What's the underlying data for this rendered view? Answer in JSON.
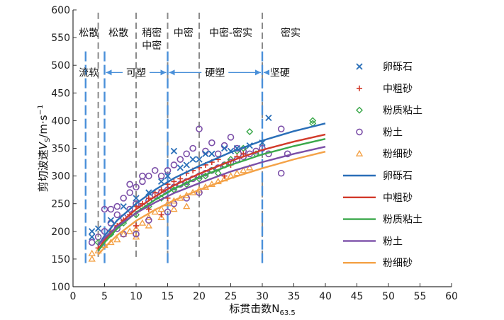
{
  "chart_data": {
    "type": "scatter",
    "title": "",
    "xlabel": "标贯击数N",
    "xlabel_sub": "63.5",
    "ylabel_main": "剪切波速",
    "ylabel_var": "V",
    "ylabel_sub": "S",
    "ylabel_unit": "/m·s",
    "ylabel_exp": "−1",
    "xlim": [
      0,
      60
    ],
    "ylim": [
      100,
      600
    ],
    "xticks": [
      0,
      5,
      10,
      15,
      20,
      25,
      30,
      35,
      40,
      45,
      50,
      55,
      60
    ],
    "yticks": [
      100,
      150,
      200,
      250,
      300,
      350,
      400,
      450,
      500,
      550,
      600
    ],
    "grid": false,
    "legend_position": "right",
    "density_zones": {
      "boundaries": [
        4,
        10,
        15,
        20,
        30
      ],
      "labels": [
        {
          "text": "松散",
          "x": 2.5,
          "y": 559
        },
        {
          "text": "松散",
          "x": 7.2,
          "y": 559
        },
        {
          "text": "稍密",
          "x": 12.5,
          "y": 559
        },
        {
          "text": "中密",
          "x": 12.5,
          "y": 536
        },
        {
          "text": "中密",
          "x": 17.5,
          "y": 559
        },
        {
          "text": "中密-密实",
          "x": 25,
          "y": 559
        },
        {
          "text": "密实",
          "x": 34.5,
          "y": 559
        }
      ]
    },
    "consistency_zones": {
      "boundaries": [
        2,
        5,
        15,
        30
      ],
      "labels": [
        {
          "text": "流软",
          "x": 2.5,
          "y": 487
        },
        {
          "text": "可塑",
          "x": 10,
          "y": 487
        },
        {
          "text": "硬塑",
          "x": 22.5,
          "y": 487
        },
        {
          "text": "坚硬",
          "x": 32.8,
          "y": 487
        }
      ]
    },
    "series": [
      {
        "name": "卵砾石",
        "kind": "scatter",
        "marker": "x",
        "color": "#2a6fb8",
        "points": [
          [
            3,
            190
          ],
          [
            3,
            200
          ],
          [
            4,
            205
          ],
          [
            6,
            220
          ],
          [
            8,
            245
          ],
          [
            10,
            260
          ],
          [
            12,
            270
          ],
          [
            14,
            290
          ],
          [
            15,
            300
          ],
          [
            16,
            345
          ],
          [
            18,
            320
          ],
          [
            20,
            330
          ],
          [
            22,
            340
          ],
          [
            24,
            350
          ],
          [
            25,
            345
          ],
          [
            26,
            350
          ],
          [
            28,
            355
          ],
          [
            30,
            360
          ],
          [
            31,
            405
          ],
          [
            19,
            330
          ],
          [
            21,
            340
          ],
          [
            17,
            315
          ]
        ]
      },
      {
        "name": "中粗砂",
        "kind": "scatter",
        "marker": "+",
        "color": "#d23a2a",
        "points": [
          [
            4,
            170
          ],
          [
            5,
            185
          ],
          [
            6,
            200
          ],
          [
            7,
            210
          ],
          [
            8,
            220
          ],
          [
            9,
            230
          ],
          [
            10,
            245
          ],
          [
            11,
            250
          ],
          [
            12,
            260
          ],
          [
            13,
            270
          ],
          [
            14,
            275
          ],
          [
            15,
            285
          ],
          [
            16,
            290
          ],
          [
            17,
            295
          ],
          [
            18,
            305
          ],
          [
            19,
            310
          ],
          [
            20,
            315
          ],
          [
            21,
            320
          ],
          [
            22,
            325
          ],
          [
            23,
            330
          ],
          [
            24,
            300
          ],
          [
            25,
            320
          ],
          [
            26,
            335
          ],
          [
            27,
            340
          ],
          [
            14,
            230
          ],
          [
            15,
            260
          ],
          [
            10,
            210
          ],
          [
            12,
            240
          ]
        ]
      },
      {
        "name": "粉质粘土",
        "kind": "scatter",
        "marker": "diamond",
        "color": "#3aa84a",
        "points": [
          [
            4,
            180
          ],
          [
            6,
            195
          ],
          [
            8,
            215
          ],
          [
            10,
            230
          ],
          [
            12,
            245
          ],
          [
            14,
            260
          ],
          [
            16,
            275
          ],
          [
            18,
            285
          ],
          [
            20,
            295
          ],
          [
            22,
            310
          ],
          [
            24,
            320
          ],
          [
            25,
            330
          ],
          [
            26,
            345
          ],
          [
            27,
            350
          ],
          [
            28,
            380
          ],
          [
            29,
            340
          ],
          [
            38,
            395
          ],
          [
            38,
            400
          ],
          [
            21,
            300
          ],
          [
            23,
            305
          ]
        ]
      },
      {
        "name": "粉土",
        "kind": "scatter",
        "marker": "circle",
        "color": "#7b4fa8",
        "points": [
          [
            3,
            180
          ],
          [
            4,
            190
          ],
          [
            5,
            200
          ],
          [
            5,
            240
          ],
          [
            6,
            215
          ],
          [
            6,
            240
          ],
          [
            7,
            230
          ],
          [
            7,
            245
          ],
          [
            8,
            225
          ],
          [
            8,
            260
          ],
          [
            9,
            240
          ],
          [
            9,
            270
          ],
          [
            10,
            250
          ],
          [
            10,
            280
          ],
          [
            11,
            245
          ],
          [
            11,
            290
          ],
          [
            12,
            255
          ],
          [
            12,
            300
          ],
          [
            13,
            265
          ],
          [
            13,
            310
          ],
          [
            14,
            270
          ],
          [
            14,
            300
          ],
          [
            15,
            275
          ],
          [
            15,
            310
          ],
          [
            16,
            280
          ],
          [
            16,
            320
          ],
          [
            17,
            285
          ],
          [
            17,
            330
          ],
          [
            18,
            290
          ],
          [
            18,
            340
          ],
          [
            19,
            295
          ],
          [
            19,
            350
          ],
          [
            20,
            300
          ],
          [
            20,
            385
          ],
          [
            21,
            305
          ],
          [
            21,
            345
          ],
          [
            22,
            310
          ],
          [
            22,
            360
          ],
          [
            23,
            315
          ],
          [
            23,
            340
          ],
          [
            24,
            320
          ],
          [
            24,
            355
          ],
          [
            25,
            325
          ],
          [
            25,
            370
          ],
          [
            26,
            330
          ],
          [
            26,
            350
          ],
          [
            27,
            335
          ],
          [
            27,
            345
          ],
          [
            28,
            340
          ],
          [
            29,
            345
          ],
          [
            30,
            350
          ],
          [
            31,
            340
          ],
          [
            33,
            305
          ],
          [
            33,
            385
          ],
          [
            34,
            340
          ],
          [
            10,
            195
          ],
          [
            8,
            195
          ],
          [
            12,
            220
          ],
          [
            15,
            235
          ],
          [
            18,
            260
          ],
          [
            9,
            285
          ],
          [
            11,
            300
          ],
          [
            7,
            205
          ],
          [
            16,
            250
          ],
          [
            20,
            270
          ]
        ]
      },
      {
        "name": "粉细砂",
        "kind": "scatter",
        "marker": "triangle",
        "color": "#f4a247",
        "points": [
          [
            3,
            150
          ],
          [
            3,
            160
          ],
          [
            4,
            165
          ],
          [
            5,
            175
          ],
          [
            6,
            180
          ],
          [
            7,
            185
          ],
          [
            8,
            195
          ],
          [
            9,
            200
          ],
          [
            10,
            205
          ],
          [
            11,
            215
          ],
          [
            12,
            225
          ],
          [
            13,
            235
          ],
          [
            14,
            240
          ],
          [
            15,
            250
          ],
          [
            16,
            255
          ],
          [
            17,
            260
          ],
          [
            18,
            265
          ],
          [
            19,
            270
          ],
          [
            20,
            275
          ],
          [
            21,
            280
          ],
          [
            22,
            285
          ],
          [
            23,
            290
          ],
          [
            24,
            295
          ],
          [
            25,
            300
          ],
          [
            26,
            305
          ],
          [
            27,
            310
          ],
          [
            28,
            315
          ],
          [
            10,
            190
          ],
          [
            12,
            210
          ],
          [
            14,
            225
          ],
          [
            16,
            240
          ],
          [
            18,
            245
          ]
        ]
      },
      {
        "name": "卵砾石",
        "kind": "line",
        "color": "#2a6fb8",
        "points": [
          [
            4,
            175
          ],
          [
            5,
            192
          ],
          [
            7,
            220
          ],
          [
            10,
            250
          ],
          [
            13,
            275
          ],
          [
            16,
            296
          ],
          [
            20,
            318
          ],
          [
            25,
            343
          ],
          [
            30,
            364
          ],
          [
            35,
            381
          ],
          [
            40,
            395
          ]
        ]
      },
      {
        "name": "中粗砂",
        "kind": "line",
        "color": "#d23a2a",
        "points": [
          [
            4,
            168
          ],
          [
            5,
            184
          ],
          [
            7,
            210
          ],
          [
            10,
            240
          ],
          [
            13,
            263
          ],
          [
            16,
            283
          ],
          [
            20,
            304
          ],
          [
            25,
            327
          ],
          [
            30,
            347
          ],
          [
            35,
            362
          ],
          [
            40,
            375
          ]
        ]
      },
      {
        "name": "粉质粘土",
        "kind": "line",
        "color": "#3aa84a",
        "points": [
          [
            4,
            165
          ],
          [
            5,
            180
          ],
          [
            7,
            205
          ],
          [
            10,
            234
          ],
          [
            13,
            257
          ],
          [
            16,
            277
          ],
          [
            20,
            298
          ],
          [
            25,
            320
          ],
          [
            30,
            339
          ],
          [
            35,
            354
          ],
          [
            40,
            367
          ]
        ]
      },
      {
        "name": "粉土",
        "kind": "line",
        "color": "#7b4fa8",
        "points": [
          [
            4,
            175
          ],
          [
            5,
            188
          ],
          [
            7,
            209
          ],
          [
            10,
            233
          ],
          [
            13,
            252
          ],
          [
            16,
            269
          ],
          [
            20,
            287
          ],
          [
            25,
            308
          ],
          [
            30,
            325
          ],
          [
            35,
            340
          ],
          [
            40,
            353
          ]
        ]
      },
      {
        "name": "粉细砂",
        "kind": "line",
        "color": "#f4a247",
        "points": [
          [
            4,
            158
          ],
          [
            5,
            171
          ],
          [
            7,
            193
          ],
          [
            10,
            219
          ],
          [
            13,
            239
          ],
          [
            16,
            256
          ],
          [
            20,
            275
          ],
          [
            25,
            296
          ],
          [
            30,
            314
          ],
          [
            35,
            330
          ],
          [
            40,
            344
          ]
        ]
      }
    ]
  }
}
